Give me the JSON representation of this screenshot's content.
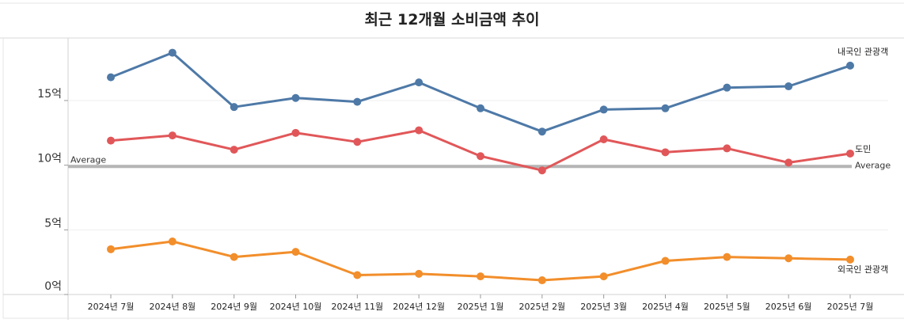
{
  "chart_data": {
    "type": "line",
    "title": "최근 12개월 소비금액 추이",
    "categories": [
      "2024년 7월",
      "2024년 8월",
      "2024년 9월",
      "2024년 10월",
      "2024년 11월",
      "2024년 12월",
      "2025년 1월",
      "2025년 2월",
      "2025년 3월",
      "2025년 4월",
      "2025년 5월",
      "2025년 6월",
      "2025년 7월"
    ],
    "y_ticks": [
      {
        "value": 0,
        "label": "0억"
      },
      {
        "value": 5,
        "label": "5억"
      },
      {
        "value": 10,
        "label": "10억"
      },
      {
        "value": 15,
        "label": "15억"
      }
    ],
    "ylim": [
      0,
      20
    ],
    "series": [
      {
        "name": "내국인 관광객",
        "label": "내국인 관광객",
        "color": "#4e79a7",
        "values": [
          16.8,
          18.7,
          14.5,
          15.2,
          14.9,
          16.4,
          14.4,
          12.6,
          14.3,
          14.4,
          16.0,
          16.1,
          17.7
        ]
      },
      {
        "name": "도민",
        "label": "도민",
        "color": "#e15759",
        "values": [
          11.9,
          12.3,
          11.2,
          12.5,
          11.8,
          12.7,
          10.7,
          9.6,
          12.0,
          11.0,
          11.3,
          10.2,
          10.9
        ]
      },
      {
        "name": "외국인 관광객",
        "label": "외국인 관광객",
        "color": "#f28e2b",
        "values": [
          3.5,
          4.1,
          2.9,
          3.3,
          1.5,
          1.6,
          1.4,
          1.1,
          1.4,
          2.6,
          2.9,
          2.8,
          2.7
        ]
      }
    ],
    "average": {
      "value": 9.9,
      "label": "Average",
      "color": "#b5b5b5"
    },
    "grid": true
  }
}
